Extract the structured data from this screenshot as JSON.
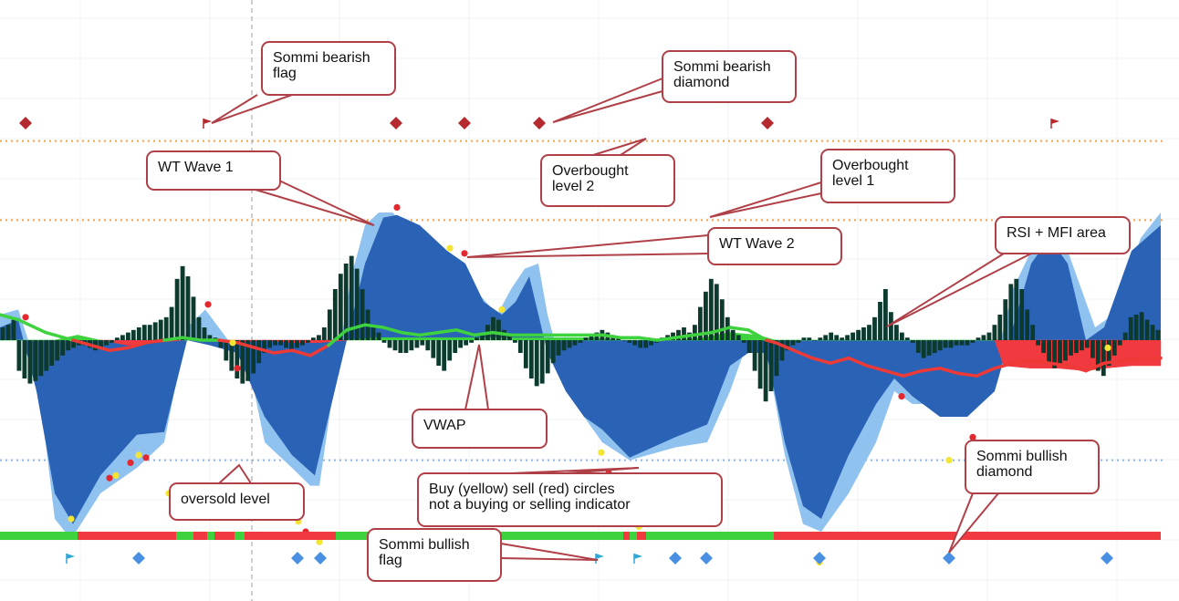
{
  "colors": {
    "wt1": "#90c2f0",
    "wt2": "#2a62b6",
    "hist": "#0c3a2e",
    "vwap_green": "#3ed23e",
    "vwap_red": "#ee3a36",
    "rsi_red": "#f03a40",
    "rsi_green": "#3ed23e",
    "buy_dot": "#f4e433",
    "sell_dot": "#e3282f",
    "bear_marker": "#b52a2e",
    "bull_marker": "#4a90e2",
    "ob_line": "#f0a54a",
    "os_line": "#8cb8e6",
    "callout_stroke": "#b04048",
    "grid": "#eef0f3",
    "crosshair": "#9aa0a6"
  },
  "chart_data": {
    "type": "line",
    "title": "",
    "xlabel": "",
    "ylabel": "",
    "x_range": [
      0,
      1292
    ],
    "ylim": [
      -95,
      140
    ],
    "levels": {
      "overbought_2": 78,
      "overbought_1": 47,
      "oversold": -47
    },
    "wt1": [
      [
        0,
        10
      ],
      [
        20,
        12
      ],
      [
        40,
        -10
      ],
      [
        60,
        -70
      ],
      [
        78,
        -78
      ],
      [
        110,
        -60
      ],
      [
        150,
        -50
      ],
      [
        180,
        -40
      ],
      [
        205,
        5
      ],
      [
        225,
        12
      ],
      [
        250,
        0
      ],
      [
        270,
        -5
      ],
      [
        290,
        -40
      ],
      [
        320,
        -50
      ],
      [
        340,
        -57
      ],
      [
        350,
        -57
      ],
      [
        365,
        -20
      ],
      [
        385,
        25
      ],
      [
        400,
        45
      ],
      [
        415,
        50
      ],
      [
        430,
        50
      ],
      [
        460,
        40
      ],
      [
        490,
        35
      ],
      [
        520,
        20
      ],
      [
        545,
        10
      ],
      [
        560,
        20
      ],
      [
        575,
        28
      ],
      [
        590,
        30
      ],
      [
        600,
        10
      ],
      [
        615,
        -10
      ],
      [
        640,
        -30
      ],
      [
        660,
        -40
      ],
      [
        690,
        -47
      ],
      [
        740,
        -42
      ],
      [
        775,
        -40
      ],
      [
        800,
        -20
      ],
      [
        820,
        0
      ],
      [
        840,
        -5
      ],
      [
        860,
        -45
      ],
      [
        880,
        -72
      ],
      [
        900,
        -75
      ],
      [
        930,
        -60
      ],
      [
        960,
        -40
      ],
      [
        980,
        -20
      ],
      [
        1000,
        -25
      ],
      [
        1030,
        -25
      ],
      [
        1060,
        -28
      ],
      [
        1090,
        -10
      ],
      [
        1110,
        20
      ],
      [
        1130,
        35
      ],
      [
        1150,
        40
      ],
      [
        1170,
        35
      ],
      [
        1200,
        5
      ],
      [
        1220,
        10
      ],
      [
        1250,
        40
      ],
      [
        1272,
        50
      ]
    ],
    "wt2": [
      [
        0,
        5
      ],
      [
        20,
        8
      ],
      [
        40,
        -20
      ],
      [
        60,
        -60
      ],
      [
        80,
        -72
      ],
      [
        110,
        -53
      ],
      [
        150,
        -37
      ],
      [
        180,
        -36
      ],
      [
        205,
        0
      ],
      [
        230,
        -2
      ],
      [
        260,
        -5
      ],
      [
        290,
        -30
      ],
      [
        320,
        -45
      ],
      [
        345,
        -53
      ],
      [
        360,
        -30
      ],
      [
        380,
        0
      ],
      [
        400,
        30
      ],
      [
        420,
        48
      ],
      [
        435,
        49
      ],
      [
        460,
        45
      ],
      [
        490,
        35
      ],
      [
        510,
        30
      ],
      [
        530,
        15
      ],
      [
        550,
        10
      ],
      [
        565,
        15
      ],
      [
        580,
        25
      ],
      [
        600,
        -5
      ],
      [
        620,
        -20
      ],
      [
        640,
        -30
      ],
      [
        660,
        -35
      ],
      [
        690,
        -46
      ],
      [
        740,
        -38
      ],
      [
        775,
        -33
      ],
      [
        800,
        -10
      ],
      [
        820,
        -5
      ],
      [
        840,
        -5
      ],
      [
        860,
        -40
      ],
      [
        880,
        -65
      ],
      [
        900,
        -70
      ],
      [
        930,
        -45
      ],
      [
        960,
        -25
      ],
      [
        980,
        -15
      ],
      [
        1000,
        -22
      ],
      [
        1030,
        -30
      ],
      [
        1060,
        -30
      ],
      [
        1090,
        -20
      ],
      [
        1110,
        5
      ],
      [
        1130,
        30
      ],
      [
        1150,
        40
      ],
      [
        1170,
        30
      ],
      [
        1190,
        0
      ],
      [
        1210,
        5
      ],
      [
        1240,
        35
      ],
      [
        1272,
        45
      ]
    ],
    "histogram": [
      5,
      6,
      8,
      -12,
      -15,
      -17,
      -16,
      -14,
      -12,
      -10,
      -8,
      -6,
      -4,
      -3,
      -2,
      -2,
      -3,
      -4,
      -3,
      -2,
      -1,
      1,
      2,
      3,
      4,
      5,
      6,
      6,
      7,
      8,
      9,
      13,
      24,
      29,
      25,
      17,
      9,
      5,
      2,
      1,
      -3,
      -8,
      -12,
      -15,
      -17,
      -16,
      -13,
      -9,
      -5,
      -3,
      -2,
      -2,
      -3,
      -4,
      -3,
      -2,
      -1,
      1,
      2,
      5,
      12,
      20,
      26,
      30,
      33,
      28,
      20,
      12,
      6,
      3,
      -1,
      -3,
      -4,
      -5,
      -5,
      -4,
      -3,
      -2,
      -4,
      -7,
      -10,
      -12,
      -8,
      -5,
      -3,
      -2,
      -1,
      1,
      3,
      6,
      9,
      8,
      4,
      2,
      -1,
      -5,
      -11,
      -15,
      -18,
      -17,
      -13,
      -9,
      -6,
      -4,
      -3,
      -2,
      -1,
      1,
      2,
      3,
      4,
      3,
      2,
      1,
      0,
      -1,
      -2,
      -3,
      -3,
      -2,
      -1,
      1,
      2,
      3,
      4,
      5,
      3,
      6,
      13,
      19,
      24,
      22,
      16,
      9,
      4,
      2,
      -1,
      -5,
      -12,
      -19,
      -24,
      -20,
      -14,
      -8,
      -4,
      -2,
      -1,
      1,
      1,
      0,
      1,
      2,
      3,
      2,
      1,
      2,
      3,
      4,
      5,
      6,
      9,
      15,
      20,
      11,
      6,
      3,
      1,
      -1,
      -5,
      -7,
      -6,
      -5,
      -4,
      -3,
      -3,
      -2,
      -2,
      -2,
      -1,
      1,
      2,
      3,
      6,
      10,
      16,
      22,
      24,
      20,
      12,
      6,
      -2,
      -5,
      -9,
      -11,
      -10,
      -8,
      -6,
      -5,
      -4,
      -3,
      -7,
      -12,
      -14,
      -10,
      -6,
      -2,
      3,
      9,
      10,
      11,
      8,
      6,
      4
    ],
    "vwap": [
      [
        0,
        10
      ],
      [
        20,
        8
      ],
      [
        50,
        3
      ],
      [
        80,
        0
      ],
      [
        100,
        -2
      ],
      [
        120,
        -4
      ],
      [
        140,
        -3
      ],
      [
        160,
        -1
      ],
      [
        180,
        0
      ],
      [
        200,
        1
      ],
      [
        220,
        0
      ],
      [
        240,
        0
      ],
      [
        260,
        -1
      ],
      [
        280,
        -3
      ],
      [
        300,
        -5
      ],
      [
        320,
        -4
      ],
      [
        340,
        -6
      ],
      [
        360,
        -2
      ],
      [
        380,
        4
      ],
      [
        400,
        6
      ],
      [
        420,
        5
      ],
      [
        440,
        3
      ],
      [
        460,
        2
      ],
      [
        480,
        3
      ],
      [
        500,
        4
      ],
      [
        520,
        2
      ],
      [
        540,
        3
      ],
      [
        560,
        2
      ],
      [
        580,
        2
      ],
      [
        600,
        2
      ],
      [
        620,
        2
      ],
      [
        640,
        2
      ],
      [
        660,
        2
      ],
      [
        680,
        1
      ],
      [
        700,
        1
      ],
      [
        720,
        0
      ],
      [
        740,
        1
      ],
      [
        760,
        2
      ],
      [
        780,
        3
      ],
      [
        800,
        5
      ],
      [
        820,
        4
      ],
      [
        840,
        0
      ],
      [
        850,
        -1
      ],
      [
        870,
        -4
      ],
      [
        890,
        -7
      ],
      [
        910,
        -9
      ],
      [
        930,
        -7
      ],
      [
        950,
        -10
      ],
      [
        970,
        -12
      ],
      [
        990,
        -14
      ],
      [
        1010,
        -12
      ],
      [
        1030,
        -11
      ],
      [
        1050,
        -13
      ],
      [
        1070,
        -14
      ],
      [
        1090,
        -11
      ],
      [
        1110,
        -9
      ],
      [
        1130,
        -8
      ],
      [
        1150,
        -9
      ],
      [
        1170,
        -10
      ],
      [
        1190,
        -12
      ],
      [
        1210,
        -9
      ],
      [
        1230,
        -8
      ],
      [
        1250,
        -7
      ],
      [
        1272,
        -7
      ]
    ],
    "rsi_mfi": [
      [
        0,
        0
      ],
      [
        20,
        0
      ],
      [
        40,
        0
      ],
      [
        60,
        0
      ],
      [
        85,
        2
      ],
      [
        110,
        0
      ],
      [
        140,
        -2
      ],
      [
        170,
        -1
      ],
      [
        200,
        0
      ],
      [
        230,
        0
      ],
      [
        260,
        -1
      ],
      [
        290,
        0
      ],
      [
        320,
        -1
      ],
      [
        350,
        -1
      ],
      [
        380,
        0
      ],
      [
        410,
        1
      ],
      [
        440,
        1
      ],
      [
        470,
        1
      ],
      [
        500,
        1
      ],
      [
        530,
        1
      ],
      [
        560,
        1
      ],
      [
        590,
        1
      ],
      [
        620,
        1
      ],
      [
        650,
        1
      ],
      [
        680,
        0
      ],
      [
        710,
        0
      ],
      [
        740,
        0
      ],
      [
        770,
        1
      ],
      [
        800,
        3
      ],
      [
        830,
        2
      ],
      [
        850,
        0
      ],
      [
        880,
        0
      ],
      [
        910,
        0
      ],
      [
        940,
        0
      ],
      [
        970,
        0
      ],
      [
        1000,
        0
      ],
      [
        1030,
        0
      ],
      [
        1060,
        0
      ],
      [
        1090,
        0
      ],
      [
        1100,
        -10
      ],
      [
        1130,
        -11
      ],
      [
        1160,
        -11
      ],
      [
        1190,
        -12
      ],
      [
        1210,
        -11
      ],
      [
        1240,
        -10
      ],
      [
        1272,
        -10
      ]
    ],
    "buy_circles": [
      [
        78,
        -70
      ],
      [
        127,
        -53
      ],
      [
        152,
        -45
      ],
      [
        185,
        -60
      ],
      [
        255,
        -1
      ],
      [
        327,
        -71
      ],
      [
        350,
        -79
      ],
      [
        493,
        36
      ],
      [
        550,
        12
      ],
      [
        659,
        -44
      ],
      [
        700,
        -73
      ],
      [
        742,
        -68
      ],
      [
        774,
        -66
      ],
      [
        898,
        -87
      ],
      [
        1040,
        -47
      ],
      [
        1082,
        -45
      ],
      [
        1214,
        -3
      ]
    ],
    "sell_circles": [
      [
        28,
        9
      ],
      [
        120,
        -54
      ],
      [
        143,
        -48
      ],
      [
        160,
        -46
      ],
      [
        228,
        14
      ],
      [
        260,
        -11
      ],
      [
        335,
        -75
      ],
      [
        435,
        52
      ],
      [
        509,
        34
      ],
      [
        592,
        34
      ],
      [
        667,
        -52
      ],
      [
        730,
        -71
      ],
      [
        757,
        -63
      ],
      [
        988,
        -22
      ],
      [
        1066,
        -38
      ],
      [
        1157,
        45
      ]
    ],
    "bearish_diamonds": [
      28,
      434,
      509,
      591,
      841
    ],
    "bearish_flags": [
      227,
      1156
    ],
    "bullish_diamonds": [
      152,
      326,
      351,
      740,
      774,
      898,
      1040,
      1213
    ],
    "bullish_flags": [
      77,
      657,
      699
    ],
    "trend_bar": [
      [
        0,
        85,
        "green"
      ],
      [
        85,
        193,
        "red"
      ],
      [
        193,
        212,
        "green"
      ],
      [
        212,
        227,
        "red"
      ],
      [
        227,
        235,
        "green"
      ],
      [
        235,
        257,
        "red"
      ],
      [
        257,
        268,
        "green"
      ],
      [
        268,
        368,
        "red"
      ],
      [
        368,
        683,
        "green"
      ],
      [
        683,
        690,
        "red"
      ],
      [
        690,
        698,
        "green"
      ],
      [
        698,
        708,
        "red"
      ],
      [
        708,
        848,
        "green"
      ],
      [
        848,
        1272,
        "red"
      ]
    ],
    "annotations": {
      "sommi_bearish_flag": "Sommi bearish flag",
      "sommi_bearish_diamond": "Sommi bearish diamond",
      "overbought_level_2": "Overbought level 2",
      "overbought_level_1": "Overbought level 1",
      "wt_wave_1": "WT Wave 1",
      "wt_wave_2": "WT Wave 2",
      "rsi_mfi_area": "RSI + MFI area",
      "vwap": "VWAP",
      "oversold_level": "oversold level",
      "buy_sell_circles": "Buy (yellow) sell (red) circles not a buying or selling indicator",
      "sommi_bullish_diamond": "Sommi bullish diamond",
      "sommi_bullish_flag": "Sommi bullish flag"
    }
  }
}
